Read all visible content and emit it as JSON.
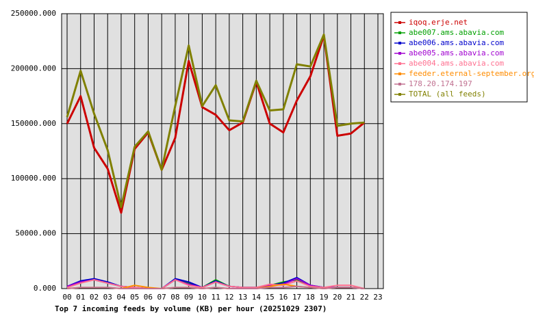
{
  "chart_data": {
    "type": "line",
    "title": "Top 7 incoming feeds by volume (KB) per hour (20251029 2307)",
    "categories": [
      "00",
      "01",
      "02",
      "03",
      "04",
      "05",
      "06",
      "07",
      "08",
      "09",
      "10",
      "11",
      "12",
      "13",
      "14",
      "15",
      "16",
      "17",
      "18",
      "19",
      "20",
      "21",
      "22",
      "23"
    ],
    "ylim": [
      0,
      250000
    ],
    "yticks": [
      {
        "value": 0,
        "label": "0.000"
      },
      {
        "value": 50000,
        "label": "50000.000"
      },
      {
        "value": 100000,
        "label": "100000.000"
      },
      {
        "value": 150000,
        "label": "150000.000"
      },
      {
        "value": 200000,
        "label": "200000.000"
      },
      {
        "value": 250000,
        "label": "250000.000"
      }
    ],
    "grid": true,
    "legend": "right",
    "series": [
      {
        "name": "iqoq.erje.net",
        "color": "#cc0000",
        "values": [
          150000,
          175000,
          128000,
          109000,
          69000,
          127000,
          142000,
          108000,
          137000,
          207000,
          165000,
          158000,
          144000,
          151000,
          188000,
          150000,
          142000,
          171000,
          193000,
          230000,
          139000,
          141000,
          151000,
          null
        ]
      },
      {
        "name": "abe007.ams.abavia.com",
        "color": "#00a000",
        "values": [
          2000,
          6000,
          8000,
          5000,
          2000,
          1000,
          0,
          0,
          8000,
          5000,
          1000,
          8000,
          2000,
          1000,
          1000,
          3000,
          6000,
          8000,
          3000,
          1000,
          1000,
          1000,
          0,
          null
        ]
      },
      {
        "name": "abe006.ams.abavia.com",
        "color": "#0000cc",
        "values": [
          2000,
          7000,
          9000,
          6000,
          2000,
          1000,
          0,
          0,
          9000,
          6000,
          1000,
          7000,
          2000,
          1000,
          1000,
          3000,
          5000,
          10000,
          3000,
          1000,
          1000,
          1000,
          0,
          null
        ]
      },
      {
        "name": "abe005.ams.abavia.com",
        "color": "#a000d0",
        "values": [
          2000,
          6000,
          8000,
          5000,
          2000,
          1000,
          0,
          0,
          8000,
          4000,
          1000,
          6000,
          2000,
          1000,
          1000,
          3000,
          4000,
          9000,
          3000,
          1000,
          1000,
          1000,
          0,
          null
        ]
      },
      {
        "name": "abe004.ams.abavia.com",
        "color": "#ff7090",
        "values": [
          1000,
          5000,
          8000,
          5000,
          2000,
          1000,
          0,
          0,
          8000,
          3000,
          1000,
          6000,
          2000,
          1000,
          1000,
          4000,
          3000,
          7000,
          2000,
          1000,
          3000,
          3000,
          0,
          null
        ]
      },
      {
        "name": "feeder.eternal-september.org",
        "color": "#ff8c00",
        "values": [
          0,
          1000,
          1000,
          1000,
          0,
          3000,
          1000,
          0,
          1000,
          1000,
          0,
          1000,
          0,
          0,
          0,
          2000,
          4000,
          2000,
          1000,
          0,
          1000,
          1000,
          0,
          null
        ]
      },
      {
        "name": "178.20.174.197",
        "color": "#c07090",
        "values": [
          0,
          1000,
          1000,
          1000,
          0,
          0,
          0,
          0,
          1000,
          1000,
          0,
          1000,
          0,
          0,
          0,
          1000,
          1000,
          2000,
          1000,
          0,
          1000,
          1000,
          0,
          null
        ]
      },
      {
        "name": "TOTAL (all feeds)",
        "color": "#808000",
        "values": [
          156000,
          198000,
          159000,
          126000,
          74000,
          129000,
          143000,
          108000,
          166000,
          221000,
          166000,
          185000,
          153000,
          152000,
          189000,
          162000,
          163000,
          204000,
          202000,
          231000,
          148000,
          150000,
          151000,
          null
        ]
      }
    ]
  }
}
